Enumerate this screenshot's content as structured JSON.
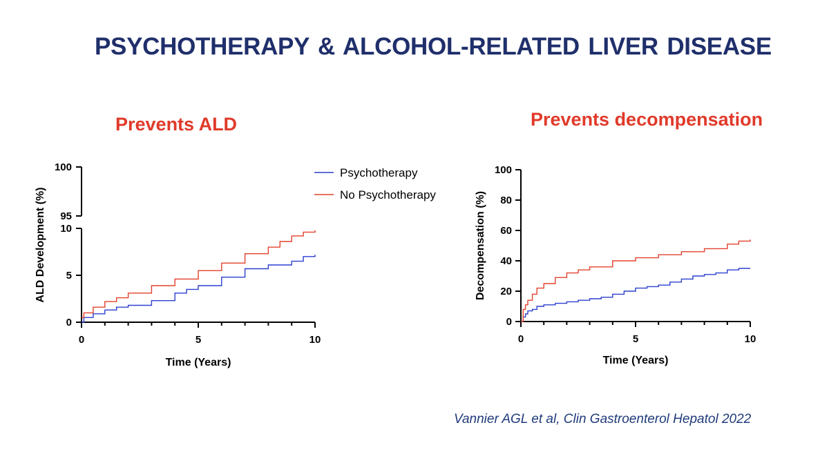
{
  "slide": {
    "title": "PSYCHOTHERAPY &  ALCOHOL-RELATED LIVER DISEASE",
    "citation": "Vannier AGL et al, Clin Gastroenterol Hepatol 2022"
  },
  "colors": {
    "psychotherapy": "#2a3fcf",
    "no_psychotherapy": "#e2402b"
  },
  "chart_data": [
    {
      "type": "line",
      "subtitle": "Prevents ALD",
      "title": "",
      "xlabel": "Time (Years)",
      "ylabel": "ALD Development (%)",
      "xlim": [
        0,
        10
      ],
      "ylim_lower": [
        0,
        10
      ],
      "ylim_upper": [
        95,
        100
      ],
      "broken_axis": true,
      "x_ticks": [
        "0",
        "5",
        "10"
      ],
      "y_ticks_lower": [
        "0",
        "5",
        "10"
      ],
      "y_ticks_upper": [
        "95",
        "100"
      ],
      "legend": [
        "Psychotherapy",
        "No Psychotherapy"
      ],
      "legend_position": "top-right",
      "series": [
        {
          "name": "Psychotherapy",
          "x": [
            0,
            0.1,
            0.5,
            1,
            1.5,
            2,
            3,
            4,
            4.5,
            5,
            6,
            7,
            8,
            9,
            9.5,
            10
          ],
          "y": [
            0,
            0.5,
            0.9,
            1.3,
            1.6,
            1.8,
            2.3,
            3.1,
            3.5,
            3.9,
            4.8,
            5.7,
            6.1,
            6.5,
            7.0,
            7.2
          ]
        },
        {
          "name": "No Psychotherapy",
          "x": [
            0,
            0.1,
            0.5,
            1,
            1.5,
            2,
            3,
            4,
            5,
            6,
            7,
            8,
            8.5,
            9,
            9.5,
            10
          ],
          "y": [
            0.5,
            1.0,
            1.6,
            2.2,
            2.6,
            3.1,
            3.9,
            4.6,
            5.5,
            6.3,
            7.3,
            8.0,
            8.6,
            9.2,
            9.6,
            9.8
          ]
        }
      ]
    },
    {
      "type": "line",
      "subtitle": "Prevents decompensation",
      "title": "",
      "xlabel": "Time (Years)",
      "ylabel": "Decompensation (%)",
      "xlim": [
        0,
        10
      ],
      "ylim": [
        0,
        100
      ],
      "x_ticks": [
        "0",
        "5",
        "10"
      ],
      "y_ticks": [
        "0",
        "20",
        "40",
        "60",
        "80",
        "100"
      ],
      "series": [
        {
          "name": "Psychotherapy",
          "x": [
            0,
            0.1,
            0.2,
            0.3,
            0.5,
            0.7,
            1,
            1.5,
            2,
            2.5,
            3,
            3.5,
            4,
            4.5,
            5,
            5.5,
            6,
            6.5,
            7,
            7.5,
            8,
            8.5,
            9,
            9.5,
            10
          ],
          "y": [
            0,
            3,
            5,
            7,
            8,
            10,
            11,
            12,
            13,
            14,
            15,
            16,
            18,
            20,
            22,
            23,
            24,
            26,
            28,
            30,
            31,
            32,
            34,
            35,
            35
          ]
        },
        {
          "name": "No Psychotherapy",
          "x": [
            0,
            0.1,
            0.2,
            0.3,
            0.5,
            0.7,
            1,
            1.5,
            2,
            2.5,
            3,
            4,
            5,
            6,
            7,
            8,
            9,
            9.5,
            10
          ],
          "y": [
            0,
            8,
            11,
            14,
            18,
            22,
            25,
            29,
            32,
            34,
            36,
            40,
            42,
            44,
            46,
            48,
            51,
            53,
            54
          ]
        }
      ]
    }
  ]
}
